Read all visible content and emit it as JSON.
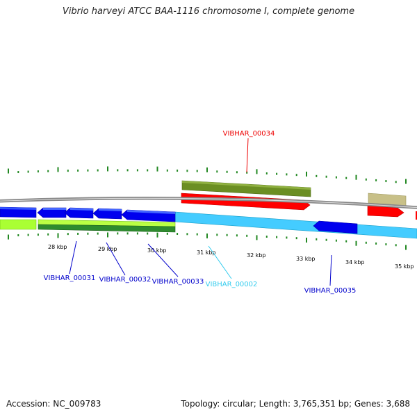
{
  "title": "Vibrio harveyi ATCC BAA-1116 chromosome I, complete genome",
  "footer": {
    "accession_label": "Accession:",
    "accession": "NC_009783",
    "topology_label": "Topology:",
    "topology": "circular",
    "length_label": "Length:",
    "length": "3,765,351 bp",
    "genes_label": "Genes:",
    "genes": "3,688"
  },
  "colors": {
    "backbone": "#888888",
    "forward_cds": "#ff0000",
    "forward_feature": "#6b8e23",
    "forward_pseudo": "#bdb76b",
    "reverse_cds": "#0000ee",
    "reverse_rna": "#44ccff",
    "reverse_feature": "#2e8b2e",
    "reverse_lime": "#aaff33",
    "tick": "#228822"
  },
  "scale": {
    "unit": "kbp",
    "major_ticks_kbp": [
      28,
      29,
      30,
      31,
      32,
      33,
      34,
      35
    ],
    "tick_labels": [
      "28 kbp",
      "29 kbp",
      "30 kbp",
      "31 kbp",
      "32 kbp",
      "33 kbp",
      "34 kbp",
      "35 kbp"
    ]
  },
  "genes": [
    {
      "id": "VIBHAR_00031",
      "color": "#0000ee"
    },
    {
      "id": "VIBHAR_00032",
      "color": "#0000ee"
    },
    {
      "id": "VIBHAR_00033",
      "color": "#0000ee"
    },
    {
      "id": "VIBHAR_00002",
      "color": "#33ccee"
    },
    {
      "id": "VIBHAR_00034",
      "color": "#ee0000"
    },
    {
      "id": "VIBHAR_00035",
      "color": "#0000ee"
    }
  ]
}
